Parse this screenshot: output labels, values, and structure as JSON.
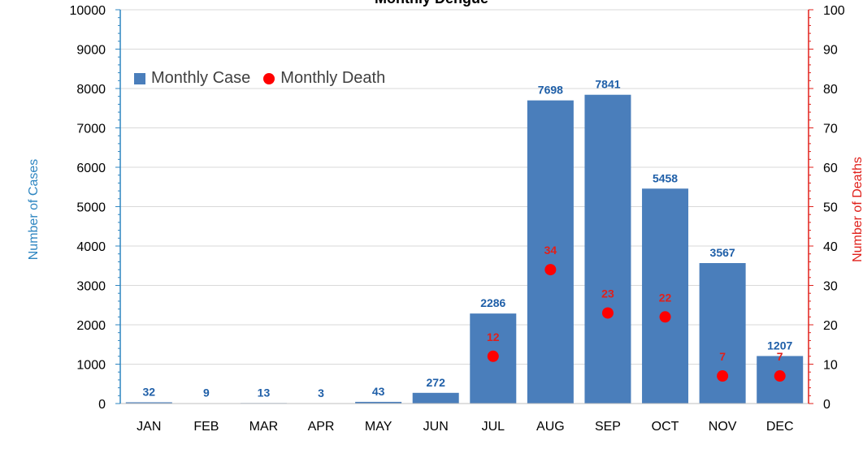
{
  "chart_data": {
    "type": "bar",
    "title": "Monthly Dengue",
    "categories": [
      "JAN",
      "FEB",
      "MAR",
      "APR",
      "MAY",
      "JUN",
      "JUL",
      "AUG",
      "SEP",
      "OCT",
      "NOV",
      "DEC"
    ],
    "series": [
      {
        "name": "Monthly Case",
        "axis": "left",
        "type": "bar",
        "values": [
          32,
          9,
          13,
          3,
          43,
          272,
          2286,
          7698,
          7841,
          5458,
          3567,
          1207
        ]
      },
      {
        "name": "Monthly Death",
        "axis": "right",
        "type": "scatter",
        "values": [
          null,
          null,
          null,
          null,
          null,
          null,
          12,
          34,
          23,
          22,
          7,
          7
        ]
      }
    ],
    "ylabel": "Number of Cases",
    "y2label": "Number of Deaths",
    "ylim": [
      0,
      10000
    ],
    "y2lim": [
      0,
      100
    ],
    "yticks": [
      0,
      1000,
      2000,
      3000,
      4000,
      5000,
      6000,
      7000,
      8000,
      9000,
      10000
    ],
    "y2ticks": [
      0,
      10,
      20,
      30,
      40,
      50,
      60,
      70,
      80,
      90,
      100
    ],
    "grid": true,
    "legend_position": "top-left",
    "colors": {
      "bar": "#4a7ebb",
      "dot": "#ff0000",
      "left_axis": "#2e86c1",
      "right_axis": "#e0201b",
      "bar_label": "#1f5fa8",
      "dot_label": "#e0201b"
    }
  }
}
